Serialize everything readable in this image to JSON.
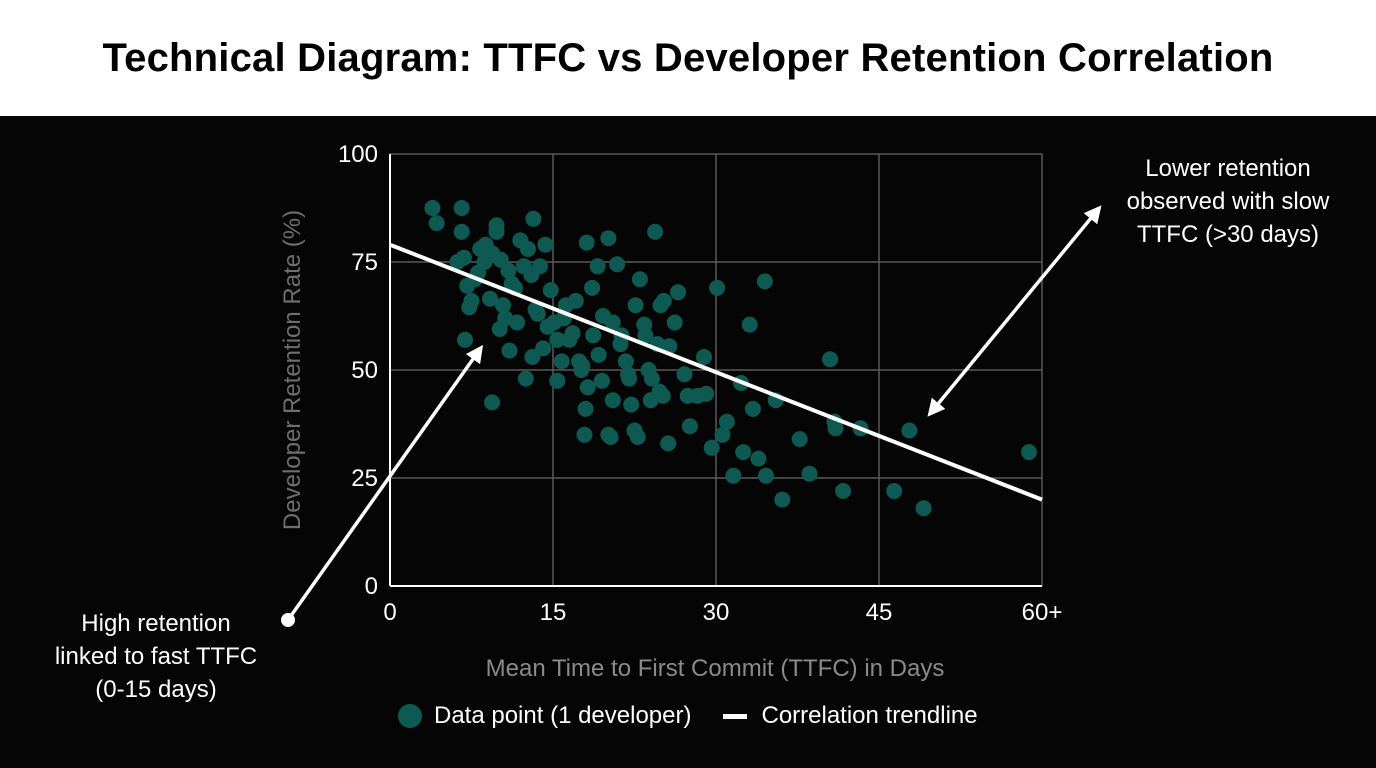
{
  "page": {
    "title": "Technical Diagram: TTFC vs Developer Retention Correlation"
  },
  "chart_data": {
    "type": "scatter",
    "xlabel": "Mean Time to First Commit (TTFC) in Days",
    "ylabel": "Developer Retention Rate (%)",
    "xlim": [
      0,
      60
    ],
    "ylim": [
      0,
      100
    ],
    "x_ticks": [
      {
        "value": 0,
        "label": "0"
      },
      {
        "value": 15,
        "label": "15"
      },
      {
        "value": 30,
        "label": "30"
      },
      {
        "value": 45,
        "label": "45"
      },
      {
        "value": 60,
        "label": "60+"
      }
    ],
    "y_ticks": [
      {
        "value": 0,
        "label": "0"
      },
      {
        "value": 25,
        "label": "25"
      },
      {
        "value": 50,
        "label": "50"
      },
      {
        "value": 75,
        "label": "75"
      },
      {
        "value": 100,
        "label": "100"
      }
    ],
    "grid": true,
    "point_color": "#0e5a53",
    "trendline_color": "#ffffff",
    "series": [
      {
        "name": "Data point (1 developer)",
        "points": [
          [
            3.9,
            87.5
          ],
          [
            4.3,
            84
          ],
          [
            6.6,
            87.5
          ],
          [
            6.6,
            82
          ],
          [
            6.8,
            76
          ],
          [
            7.1,
            69.5
          ],
          [
            7.5,
            66
          ],
          [
            7.8,
            71
          ],
          [
            8.1,
            72.5
          ],
          [
            8.3,
            78
          ],
          [
            8.8,
            79
          ],
          [
            9.4,
            77
          ],
          [
            9.8,
            83.5
          ],
          [
            9.8,
            82
          ],
          [
            10.2,
            75.5
          ],
          [
            10.4,
            65
          ],
          [
            10.6,
            62
          ],
          [
            10.9,
            73
          ],
          [
            11.2,
            70
          ],
          [
            11.7,
            61
          ],
          [
            12,
            80
          ],
          [
            12.3,
            74
          ],
          [
            12.7,
            78
          ],
          [
            13,
            72
          ],
          [
            13.2,
            85
          ],
          [
            13.4,
            64
          ],
          [
            13.8,
            74
          ],
          [
            14.1,
            55
          ],
          [
            14.3,
            79
          ],
          [
            14.8,
            68.5
          ],
          [
            15.1,
            61
          ],
          [
            15.4,
            57
          ],
          [
            16,
            62
          ],
          [
            16.5,
            57
          ],
          [
            17.1,
            66
          ],
          [
            17.4,
            52
          ],
          [
            17.7,
            51
          ],
          [
            18.1,
            79.5
          ],
          [
            18.6,
            69
          ],
          [
            19.1,
            74
          ],
          [
            19.6,
            62.5
          ],
          [
            20.1,
            80.5
          ],
          [
            20.5,
            61
          ],
          [
            20.9,
            74.5
          ],
          [
            21.3,
            58
          ],
          [
            21.9,
            49
          ],
          [
            22.2,
            42
          ],
          [
            22.6,
            65
          ],
          [
            23,
            71
          ],
          [
            23.4,
            60.5
          ],
          [
            23.8,
            50
          ],
          [
            24.1,
            48
          ],
          [
            24.4,
            82
          ],
          [
            24.9,
            65
          ],
          [
            25.2,
            66
          ],
          [
            25.7,
            55.5
          ],
          [
            26.2,
            61
          ],
          [
            26.5,
            68
          ],
          [
            27.1,
            49
          ],
          [
            27.4,
            44
          ],
          [
            6.2,
            75
          ],
          [
            6.9,
            57
          ],
          [
            7.3,
            64.5
          ],
          [
            8.7,
            75
          ],
          [
            9.2,
            66.5
          ],
          [
            9.4,
            42.5
          ],
          [
            10.1,
            59.5
          ],
          [
            11,
            54.5
          ],
          [
            11.5,
            69
          ],
          [
            12.5,
            48
          ],
          [
            13.6,
            63
          ],
          [
            14.5,
            60
          ],
          [
            15.4,
            47.5
          ],
          [
            15.8,
            52
          ],
          [
            16.2,
            65
          ],
          [
            17.6,
            50
          ],
          [
            18,
            41
          ],
          [
            18.2,
            46
          ],
          [
            18.7,
            58
          ],
          [
            19.2,
            53.5
          ],
          [
            19.5,
            47.5
          ],
          [
            20.1,
            35
          ],
          [
            20.5,
            43
          ],
          [
            21.2,
            56
          ],
          [
            21.7,
            52
          ],
          [
            22,
            48
          ],
          [
            22.5,
            36
          ],
          [
            22.8,
            34.5
          ],
          [
            23.5,
            58
          ],
          [
            24,
            43
          ],
          [
            24.6,
            56
          ],
          [
            25.1,
            44
          ],
          [
            25.6,
            33
          ],
          [
            17.9,
            35
          ],
          [
            24.8,
            45
          ],
          [
            27.6,
            37
          ],
          [
            28.3,
            44
          ],
          [
            29.1,
            44.5
          ],
          [
            29.6,
            32
          ],
          [
            30.1,
            69
          ],
          [
            30.6,
            35
          ],
          [
            31,
            38
          ],
          [
            31.6,
            25.5
          ],
          [
            32.5,
            31
          ],
          [
            33.1,
            60.5
          ],
          [
            33.4,
            41
          ],
          [
            33.9,
            29.5
          ],
          [
            34.5,
            70.5
          ],
          [
            34.6,
            25.5
          ],
          [
            35.5,
            43
          ],
          [
            36.1,
            20
          ],
          [
            38.6,
            26
          ],
          [
            40.5,
            52.5
          ],
          [
            40.9,
            38
          ],
          [
            41,
            36.5
          ],
          [
            41.7,
            22
          ],
          [
            43.3,
            36.5
          ],
          [
            46.4,
            22
          ],
          [
            47.8,
            36
          ],
          [
            49.1,
            18
          ],
          [
            58.8,
            31
          ],
          [
            32.3,
            47
          ],
          [
            13.1,
            53
          ],
          [
            16.8,
            58.5
          ],
          [
            20.3,
            34.5
          ],
          [
            28.9,
            53
          ],
          [
            37.7,
            34
          ]
        ]
      }
    ],
    "trendline": {
      "name": "Correlation trendline",
      "x": [
        0,
        60
      ],
      "y": [
        79,
        20
      ]
    }
  },
  "annotations": {
    "left": {
      "lines": [
        "High retention",
        "linked to fast TTFC",
        "(0-15 days)"
      ]
    },
    "right": {
      "lines": [
        "Lower retention",
        "observed with slow",
        "TTFC (>30 days)"
      ]
    }
  },
  "legend": {
    "points_label": "Data point (1 developer)",
    "line_label": "Correlation trendline"
  }
}
